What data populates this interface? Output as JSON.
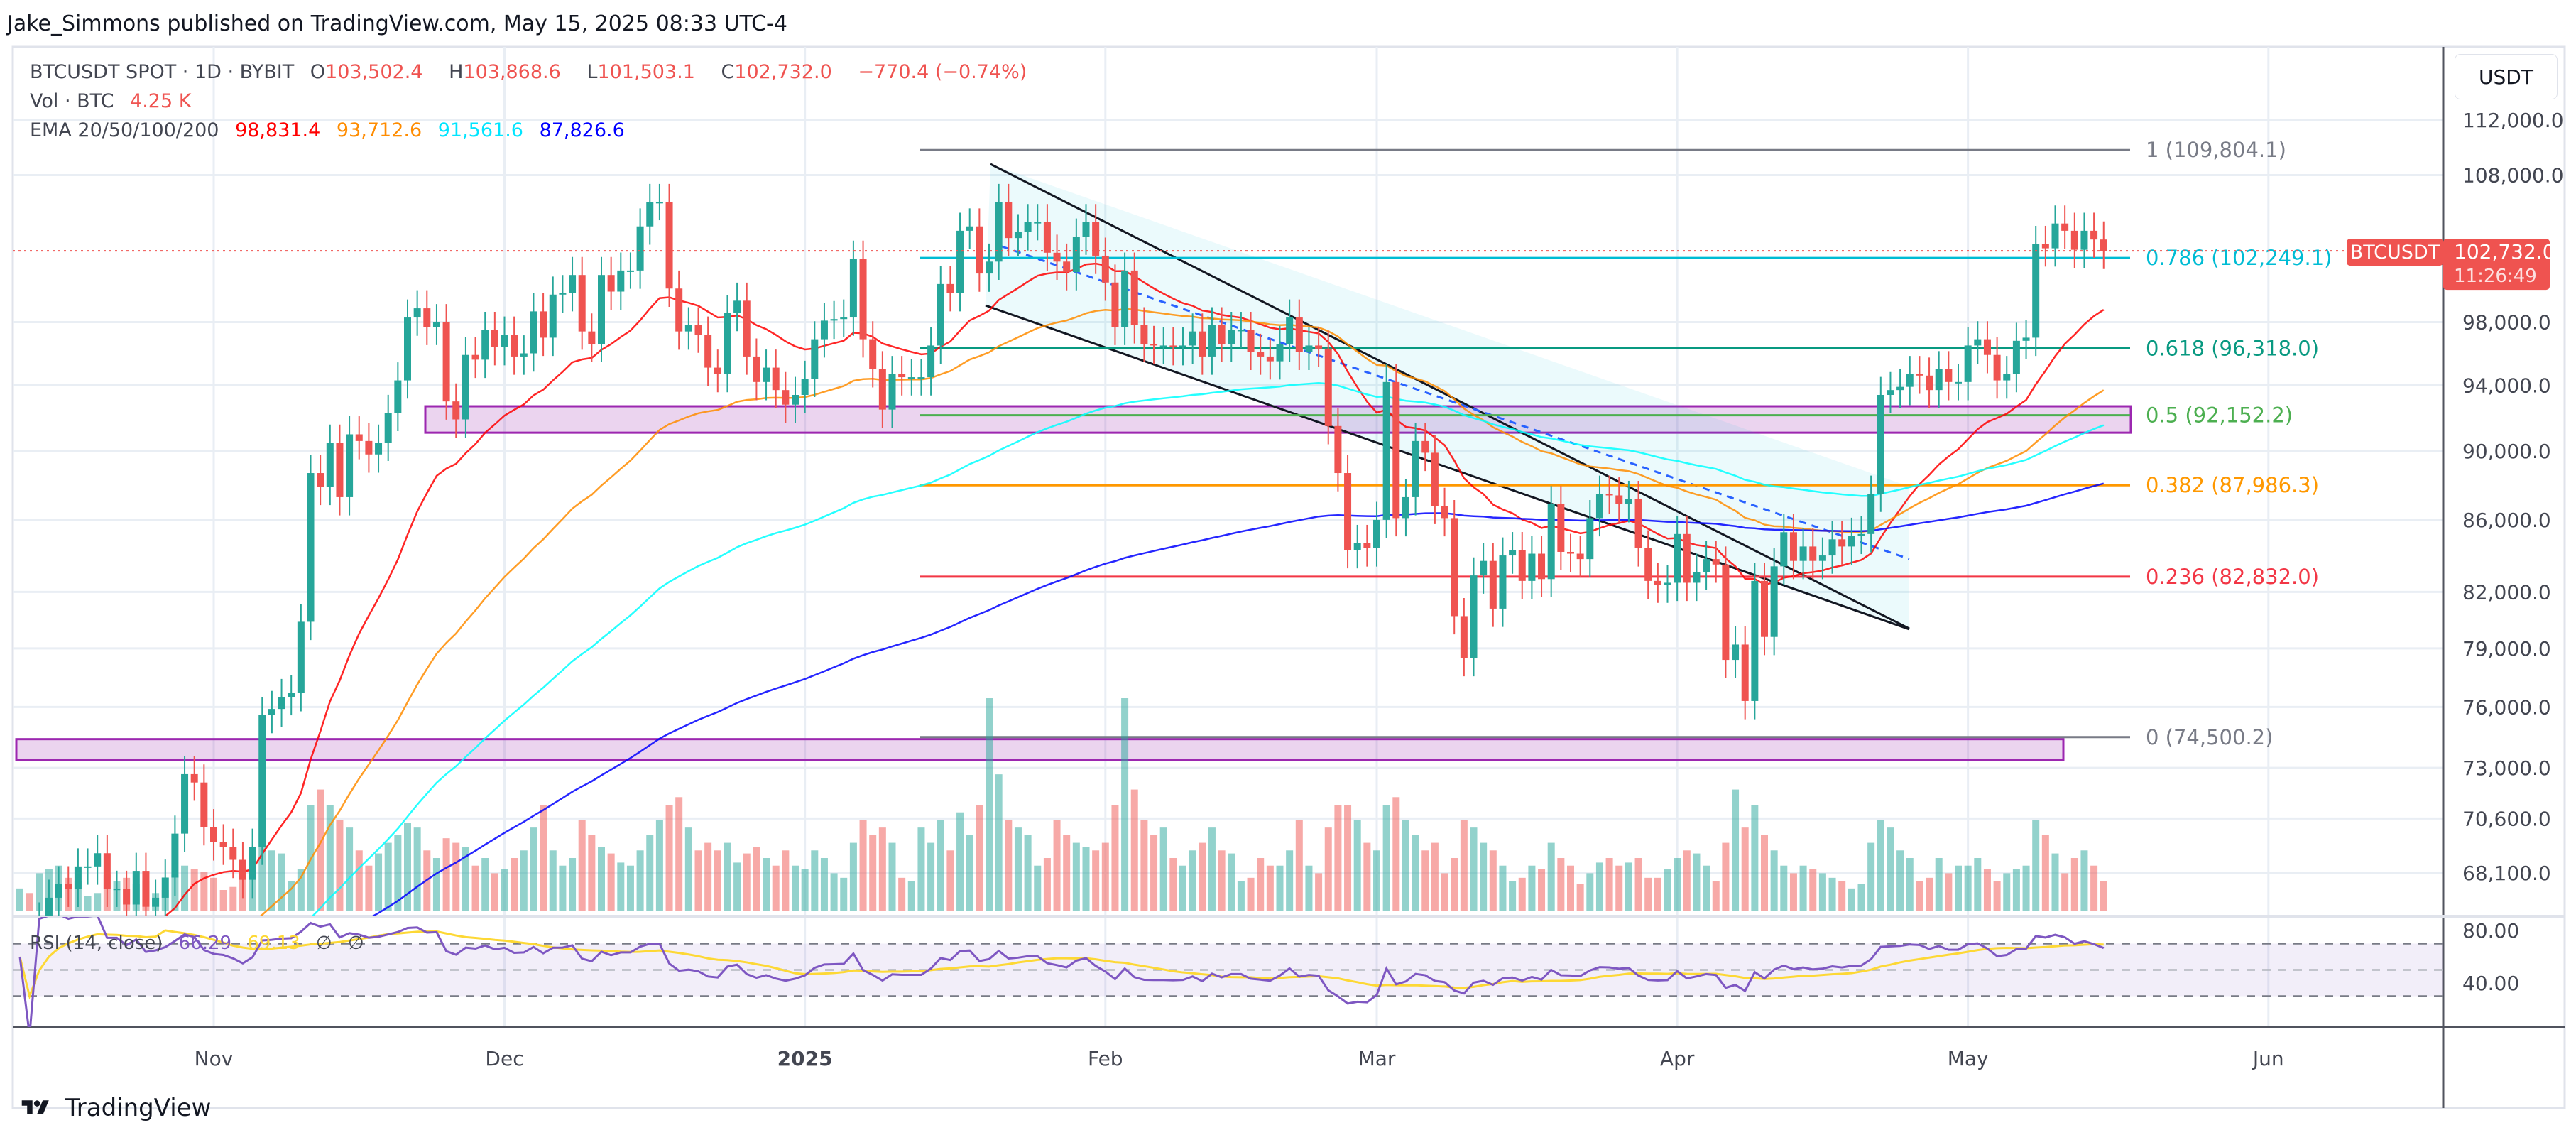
{
  "header": {
    "published": "Jake_Simmons published on TradingView.com, May 15, 2025 08:33 UTC-4"
  },
  "legend": {
    "symbol": "BTCUSDT SPOT · 1D · BYBIT",
    "open_label": "O",
    "open": "103,502.4",
    "high_label": "H",
    "high": "103,868.6",
    "low_label": "L",
    "low": "101,503.1",
    "close_label": "C",
    "close": "102,732.0",
    "change": "−770.4 (−0.74%)",
    "vol_label": "Vol · BTC",
    "vol": "4.25 K",
    "ema_label": "EMA 20/50/100/200",
    "ema_values": [
      "98,831.4",
      "93,712.6",
      "91,561.6",
      "87,826.6"
    ],
    "ema_colors": [
      "#ff0000",
      "#ff8c00",
      "#00ffff",
      "#0000ff"
    ]
  },
  "price_axis": {
    "currency_button": "USDT",
    "scale": "log",
    "ticks": [
      "112,000.0",
      "108,000.0",
      "98,000.0",
      "94,000.0",
      "90,000.0",
      "86,000.0",
      "82,000.0",
      "79,000.0",
      "76,000.0",
      "73,000.0",
      "70,600.0",
      "68,100.0"
    ],
    "last_price_symbol": "BTCUSDT",
    "last_price": "102,732.0",
    "countdown": "11:26:49"
  },
  "rsi": {
    "label": "RSI (14, close)",
    "value": "66.29",
    "ma_value": "69.13",
    "extra": [
      "∅",
      "∅"
    ],
    "ticks": [
      "80.00",
      "40.00"
    ],
    "line_color": "#7e57c2",
    "ma_color": "#fdd835"
  },
  "time_axis": {
    "labels": [
      "Nov",
      "Dec",
      "2025",
      "Feb",
      "Mar",
      "Apr",
      "May",
      "Jun"
    ]
  },
  "fib_levels": [
    {
      "label": "1 (109,804.1)",
      "price": 109804.1,
      "color": "#787b86"
    },
    {
      "label": "0.786 (102,249.1)",
      "price": 102249.1,
      "color": "#00bcd4"
    },
    {
      "label": "0.618 (96,318.0)",
      "price": 96318.0,
      "color": "#089981"
    },
    {
      "label": "0.5 (92,152.2)",
      "price": 92152.2,
      "color": "#4caf50"
    },
    {
      "label": "0.382 (87,986.3)",
      "price": 87986.3,
      "color": "#ff9800"
    },
    {
      "label": "0.236 (82,832.0)",
      "price": 82832.0,
      "color": "#f23645"
    },
    {
      "label": "0 (74,500.2)",
      "price": 74500.2,
      "color": "#787b86"
    }
  ],
  "zones": [
    {
      "top": 92700,
      "bottom": 91100,
      "color": "#9c27b0"
    },
    {
      "top": 74400,
      "bottom": 73400,
      "color": "#9c27b0"
    }
  ],
  "colors": {
    "up": "#26a69a",
    "down": "#ef5350"
  },
  "chart_data": {
    "type": "candlestick",
    "closes": [
      63200,
      62800,
      66000,
      67000,
      67600,
      67400,
      68400,
      68400,
      69000,
      67400,
      67400,
      66700,
      68200,
      66600,
      67000,
      67900,
      69900,
      72700,
      72300,
      70200,
      69500,
      69300,
      68700,
      67800,
      69300,
      75600,
      75900,
      76500,
      76700,
      80400,
      88700,
      87900,
      90500,
      87300,
      91000,
      90600,
      89800,
      90500,
      92300,
      94300,
      98300,
      98900,
      97700,
      98000,
      93000,
      91900,
      95900,
      95600,
      97500,
      96400,
      97200,
      95800,
      96000,
      98700,
      97000,
      99800,
      99900,
      101100,
      97400,
      96600,
      101100,
      100000,
      101400,
      101400,
      104400,
      106100,
      106100,
      100200,
      97400,
      97800,
      97200,
      95100,
      94700,
      98600,
      99400,
      95800,
      94200,
      95100,
      93700,
      92800,
      93400,
      94400,
      96900,
      98100,
      98200,
      98300,
      102200,
      96900,
      95000,
      92500,
      94700,
      94500,
      94500,
      94500,
      96500,
      100500,
      99900,
      104100,
      104400,
      101200,
      102000,
      106100,
      103600,
      104000,
      104700,
      104700,
      102600,
      102000,
      101300,
      103700,
      104700,
      102400,
      100600,
      97700,
      101400,
      97800,
      96600,
      96500,
      96500,
      96400,
      96500,
      97400,
      95800,
      97800,
      96600,
      97500,
      97500,
      96100,
      95800,
      95500,
      96600,
      98300,
      96100,
      96500,
      96300,
      91500,
      88700,
      84300,
      84700,
      84400,
      86000,
      94200,
      86100,
      87300,
      90600,
      89900,
      86800,
      86100,
      80700,
      78500,
      82900,
      83700,
      81100,
      84000,
      84300,
      82600,
      84100,
      82700,
      86900,
      84200,
      84100,
      83800,
      86100,
      87500,
      87400,
      86900,
      87200,
      84400,
      82600,
      82400,
      82500,
      85200,
      82500,
      83100,
      83800,
      83500,
      78400,
      79200,
      76300,
      82600,
      79600,
      83400,
      85300,
      83700,
      84500,
      83700,
      84000,
      84900,
      84500,
      85100,
      85200,
      87500,
      93400,
      93700,
      93900,
      94700,
      94600,
      93700,
      95000,
      94200,
      94200,
      96500,
      96900,
      95900,
      94300,
      94700,
      96800,
      97000,
      103200,
      102900,
      104600,
      104100,
      102800,
      104100,
      103500,
      102732
    ],
    "volume": [
      15,
      12,
      25,
      28,
      30,
      22,
      20,
      10,
      12,
      24,
      20,
      22,
      18,
      20,
      12,
      14,
      24,
      30,
      28,
      26,
      22,
      14,
      16,
      22,
      26,
      60,
      40,
      38,
      20,
      28,
      70,
      80,
      70,
      60,
      55,
      40,
      30,
      38,
      45,
      50,
      58,
      55,
      40,
      35,
      48,
      45,
      42,
      30,
      35,
      25,
      28,
      35,
      40,
      55,
      70,
      40,
      30,
      35,
      60,
      50,
      42,
      38,
      32,
      30,
      40,
      50,
      60,
      70,
      75,
      55,
      40,
      45,
      40,
      45,
      32,
      38,
      42,
      35,
      30,
      40,
      30,
      28,
      40,
      35,
      25,
      22,
      45,
      60,
      50,
      55,
      45,
      22,
      20,
      55,
      45,
      60,
      40,
      65,
      50,
      70,
      140,
      90,
      60,
      55,
      50,
      30,
      35,
      60,
      50,
      45,
      42,
      40,
      45,
      70,
      140,
      80,
      60,
      50,
      55,
      35,
      30,
      40,
      45,
      55,
      40,
      38,
      20,
      22,
      35,
      30,
      30,
      40,
      60,
      30,
      25,
      55,
      70,
      70,
      60,
      45,
      40,
      70,
      75,
      60,
      50,
      40,
      45,
      25,
      35,
      60,
      55,
      45,
      40,
      30,
      20,
      22,
      30,
      28,
      45,
      35,
      30,
      18,
      25,
      32,
      35,
      30,
      32,
      35,
      22,
      22,
      28,
      35,
      40,
      38,
      30,
      20,
      45,
      80,
      55,
      70,
      50,
      40,
      30,
      25,
      30,
      28,
      25,
      22,
      20,
      15,
      18,
      45,
      60,
      55,
      40,
      35,
      20,
      22,
      35,
      25,
      30,
      30,
      35,
      28,
      20,
      25,
      28,
      30,
      60,
      50,
      38,
      25,
      35,
      40,
      30,
      20
    ],
    "ylim": [
      66000,
      114000
    ],
    "grid": true
  }
}
